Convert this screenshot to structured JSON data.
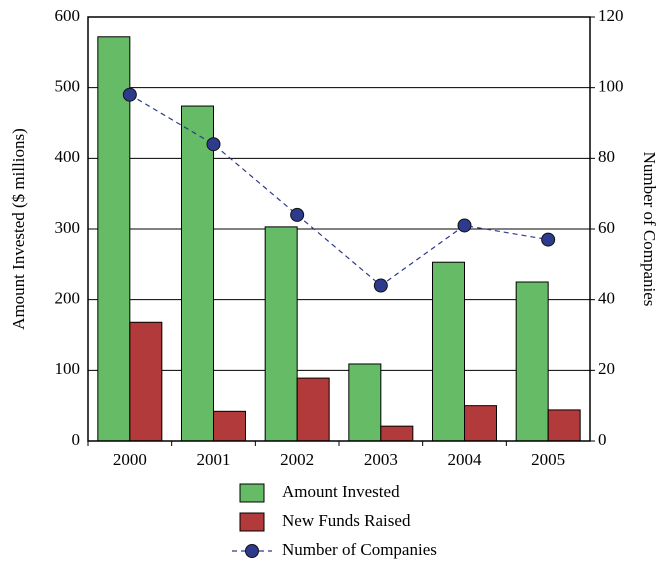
{
  "chart_data": {
    "type": "bar",
    "categories": [
      "2000",
      "2001",
      "2002",
      "2003",
      "2004",
      "2005"
    ],
    "series": [
      {
        "name": "Amount Invested",
        "color": "#66bb66",
        "type": "bar",
        "values": [
          572,
          474,
          303,
          109,
          253,
          225
        ]
      },
      {
        "name": "New Funds Raised",
        "color": "#b23a3a",
        "type": "bar",
        "values": [
          168,
          42,
          89,
          21,
          50,
          44
        ]
      },
      {
        "name": "Number of Companies",
        "color": "#2e3a8c",
        "type": "line",
        "axis": "y2",
        "values": [
          98,
          84,
          64,
          44,
          61,
          57
        ]
      }
    ],
    "ylabel": "Amount Invested ($ millions)",
    "y2label": "Number of Companies",
    "ylim": [
      0,
      600
    ],
    "yticks": [
      0,
      100,
      200,
      300,
      400,
      500,
      600
    ],
    "y2lim": [
      0,
      120
    ],
    "y2ticks": [
      0,
      20,
      40,
      60,
      80,
      100,
      120
    ],
    "grid": true,
    "legend": "bottom"
  }
}
